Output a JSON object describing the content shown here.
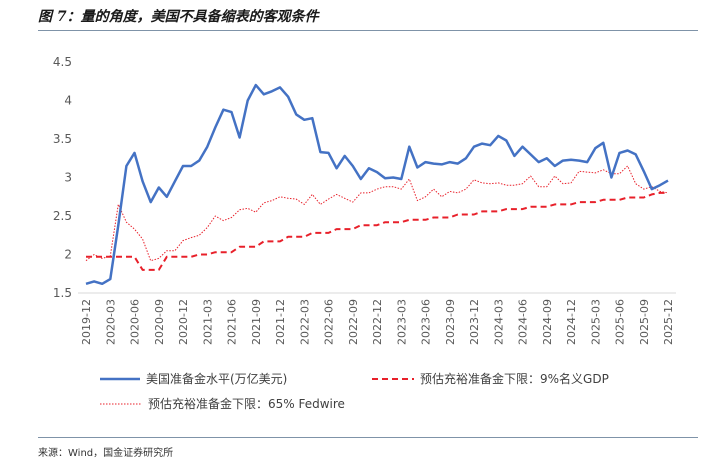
{
  "figure": {
    "title": "图 7：量的角度，美国不具备缩表的客观条件",
    "source": "来源：Wind，国金证券研究所"
  },
  "colors": {
    "reserves": "#4472c4",
    "gdp_floor": "#e8202a",
    "fedwire_floor": "#e8202a",
    "axis": "#d9d9d9",
    "tick_text": "#595959"
  },
  "chart_data": {
    "type": "line",
    "x": [
      "2019-12",
      "2020-01",
      "2020-02",
      "2020-03",
      "2020-04",
      "2020-05",
      "2020-06",
      "2020-07",
      "2020-08",
      "2020-09",
      "2020-10",
      "2020-11",
      "2020-12",
      "2021-01",
      "2021-02",
      "2021-03",
      "2021-04",
      "2021-05",
      "2021-06",
      "2021-07",
      "2021-08",
      "2021-09",
      "2021-10",
      "2021-11",
      "2021-12",
      "2022-01",
      "2022-02",
      "2022-03",
      "2022-04",
      "2022-05",
      "2022-06",
      "2022-07",
      "2022-08",
      "2022-09",
      "2022-10",
      "2022-11",
      "2022-12",
      "2023-01",
      "2023-02",
      "2023-03",
      "2023-04",
      "2023-05",
      "2023-06",
      "2023-07",
      "2023-08",
      "2023-09",
      "2023-10",
      "2023-11",
      "2023-12",
      "2024-01",
      "2024-02",
      "2024-03",
      "2024-04",
      "2024-05",
      "2024-06",
      "2024-07",
      "2024-08",
      "2024-09",
      "2024-10",
      "2024-11",
      "2024-12",
      "2025-01",
      "2025-02",
      "2025-03",
      "2025-04",
      "2025-05",
      "2025-06",
      "2025-07",
      "2025-08",
      "2025-09",
      "2025-10",
      "2025-11",
      "2025-12"
    ],
    "x_tick_labels": [
      "2019-12",
      "2020-03",
      "2020-06",
      "2020-09",
      "2020-12",
      "2021-03",
      "2021-06",
      "2021-09",
      "2021-12",
      "2022-03",
      "2022-06",
      "2022-09",
      "2022-12",
      "2023-03",
      "2023-06",
      "2023-09",
      "2023-12",
      "2024-03",
      "2024-06",
      "2024-09",
      "2024-12",
      "2025-03",
      "2025-06",
      "2025-09",
      "2025-12"
    ],
    "ylim": [
      1.5,
      4.5
    ],
    "y_ticks": [
      "1.5",
      "2",
      "2.5",
      "3",
      "3.5",
      "4",
      "4.5"
    ],
    "grid": false,
    "legend_position": "bottom",
    "series": [
      {
        "name": "美国准备金水平(万亿美元)",
        "style": "solid",
        "values": [
          1.62,
          1.65,
          1.62,
          1.68,
          2.38,
          3.15,
          3.32,
          2.95,
          2.68,
          2.87,
          2.75,
          2.95,
          3.15,
          3.15,
          3.22,
          3.4,
          3.65,
          3.88,
          3.85,
          3.52,
          4.0,
          4.2,
          4.08,
          4.12,
          4.17,
          4.05,
          3.82,
          3.75,
          3.77,
          3.33,
          3.32,
          3.12,
          3.28,
          3.15,
          2.98,
          3.12,
          3.07,
          2.99,
          3.0,
          2.98,
          3.4,
          3.13,
          3.2,
          3.18,
          3.17,
          3.2,
          3.18,
          3.25,
          3.4,
          3.44,
          3.42,
          3.54,
          3.48,
          3.28,
          3.4,
          3.3,
          3.2,
          3.25,
          3.15,
          3.22,
          3.23,
          3.22,
          3.2,
          3.38,
          3.45,
          3.0,
          3.32,
          3.35,
          3.3,
          3.08,
          2.85,
          2.9,
          2.96
        ]
      },
      {
        "name": "预估充裕准备金下限：9%名义GDP",
        "style": "dashed",
        "values": [
          1.97,
          1.97,
          1.97,
          1.97,
          1.97,
          1.97,
          1.97,
          1.8,
          1.8,
          1.8,
          1.97,
          1.97,
          1.97,
          1.97,
          2.0,
          2.0,
          2.03,
          2.03,
          2.03,
          2.1,
          2.1,
          2.1,
          2.17,
          2.17,
          2.17,
          2.23,
          2.23,
          2.23,
          2.28,
          2.28,
          2.28,
          2.33,
          2.33,
          2.33,
          2.38,
          2.38,
          2.38,
          2.42,
          2.42,
          2.42,
          2.45,
          2.45,
          2.45,
          2.48,
          2.48,
          2.48,
          2.52,
          2.52,
          2.52,
          2.56,
          2.56,
          2.56,
          2.59,
          2.59,
          2.59,
          2.62,
          2.62,
          2.62,
          2.65,
          2.65,
          2.65,
          2.68,
          2.68,
          2.68,
          2.71,
          2.71,
          2.71,
          2.74,
          2.74,
          2.74,
          2.78,
          2.8,
          2.8
        ]
      },
      {
        "name": "预估充裕准备金下限：65% Fedwire",
        "style": "dotted",
        "values": [
          1.92,
          2.0,
          1.95,
          1.98,
          2.65,
          2.42,
          2.33,
          2.2,
          1.92,
          1.95,
          2.05,
          2.05,
          2.18,
          2.22,
          2.25,
          2.35,
          2.5,
          2.44,
          2.48,
          2.58,
          2.6,
          2.55,
          2.67,
          2.7,
          2.75,
          2.73,
          2.72,
          2.65,
          2.78,
          2.65,
          2.72,
          2.78,
          2.73,
          2.68,
          2.8,
          2.8,
          2.85,
          2.88,
          2.88,
          2.85,
          2.98,
          2.7,
          2.75,
          2.85,
          2.75,
          2.82,
          2.8,
          2.85,
          2.97,
          2.93,
          2.92,
          2.93,
          2.9,
          2.9,
          2.92,
          3.02,
          2.88,
          2.88,
          3.02,
          2.92,
          2.93,
          3.08,
          3.07,
          3.06,
          3.1,
          3.05,
          3.05,
          3.15,
          2.92,
          2.85,
          2.88,
          2.82,
          2.8
        ]
      }
    ]
  }
}
